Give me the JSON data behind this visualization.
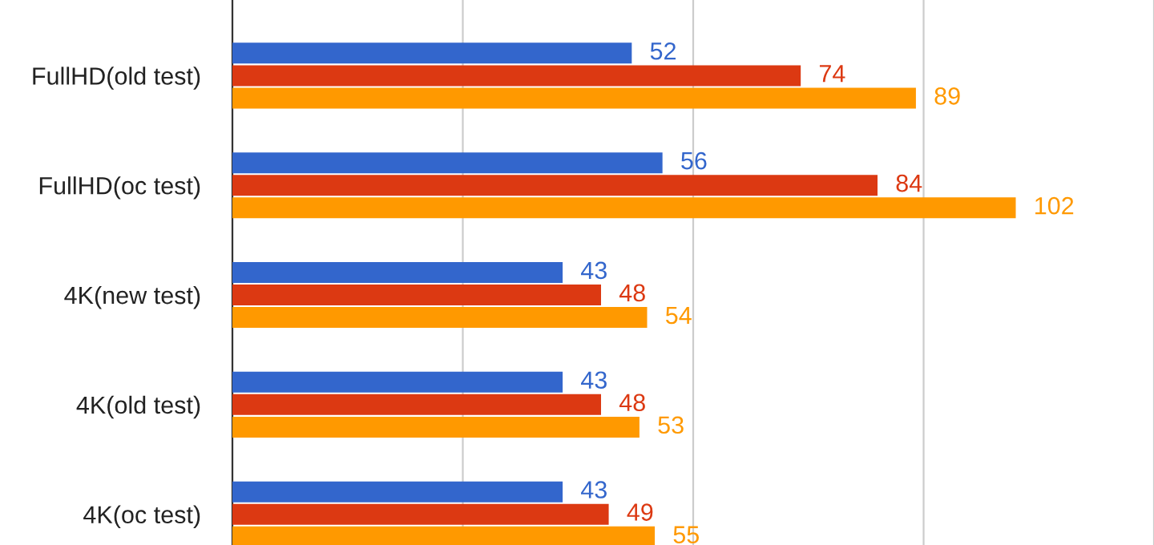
{
  "chart_data": {
    "type": "bar",
    "orientation": "horizontal",
    "categories": [
      "FullHD(old test)",
      "FullHD(oc test)",
      "4K(new test)",
      "4K(old test)",
      "4K(oc test)"
    ],
    "series": [
      {
        "color": "#3366cc",
        "values": [
          52,
          56,
          43,
          43,
          43
        ]
      },
      {
        "color": "#dc3912",
        "values": [
          74,
          84,
          48,
          48,
          49
        ]
      },
      {
        "color": "#ff9900",
        "values": [
          89,
          102,
          54,
          53,
          55
        ]
      }
    ],
    "xticks": [
      {
        "value": 0,
        "label": null
      },
      {
        "value": 30,
        "label": null
      },
      {
        "value": 60,
        "label": null
      },
      {
        "value": 90,
        "label": null
      },
      {
        "value": 120,
        "label": null
      }
    ],
    "grid": "x",
    "tick_labels": "y",
    "data_labels": true,
    "legend": false
  }
}
